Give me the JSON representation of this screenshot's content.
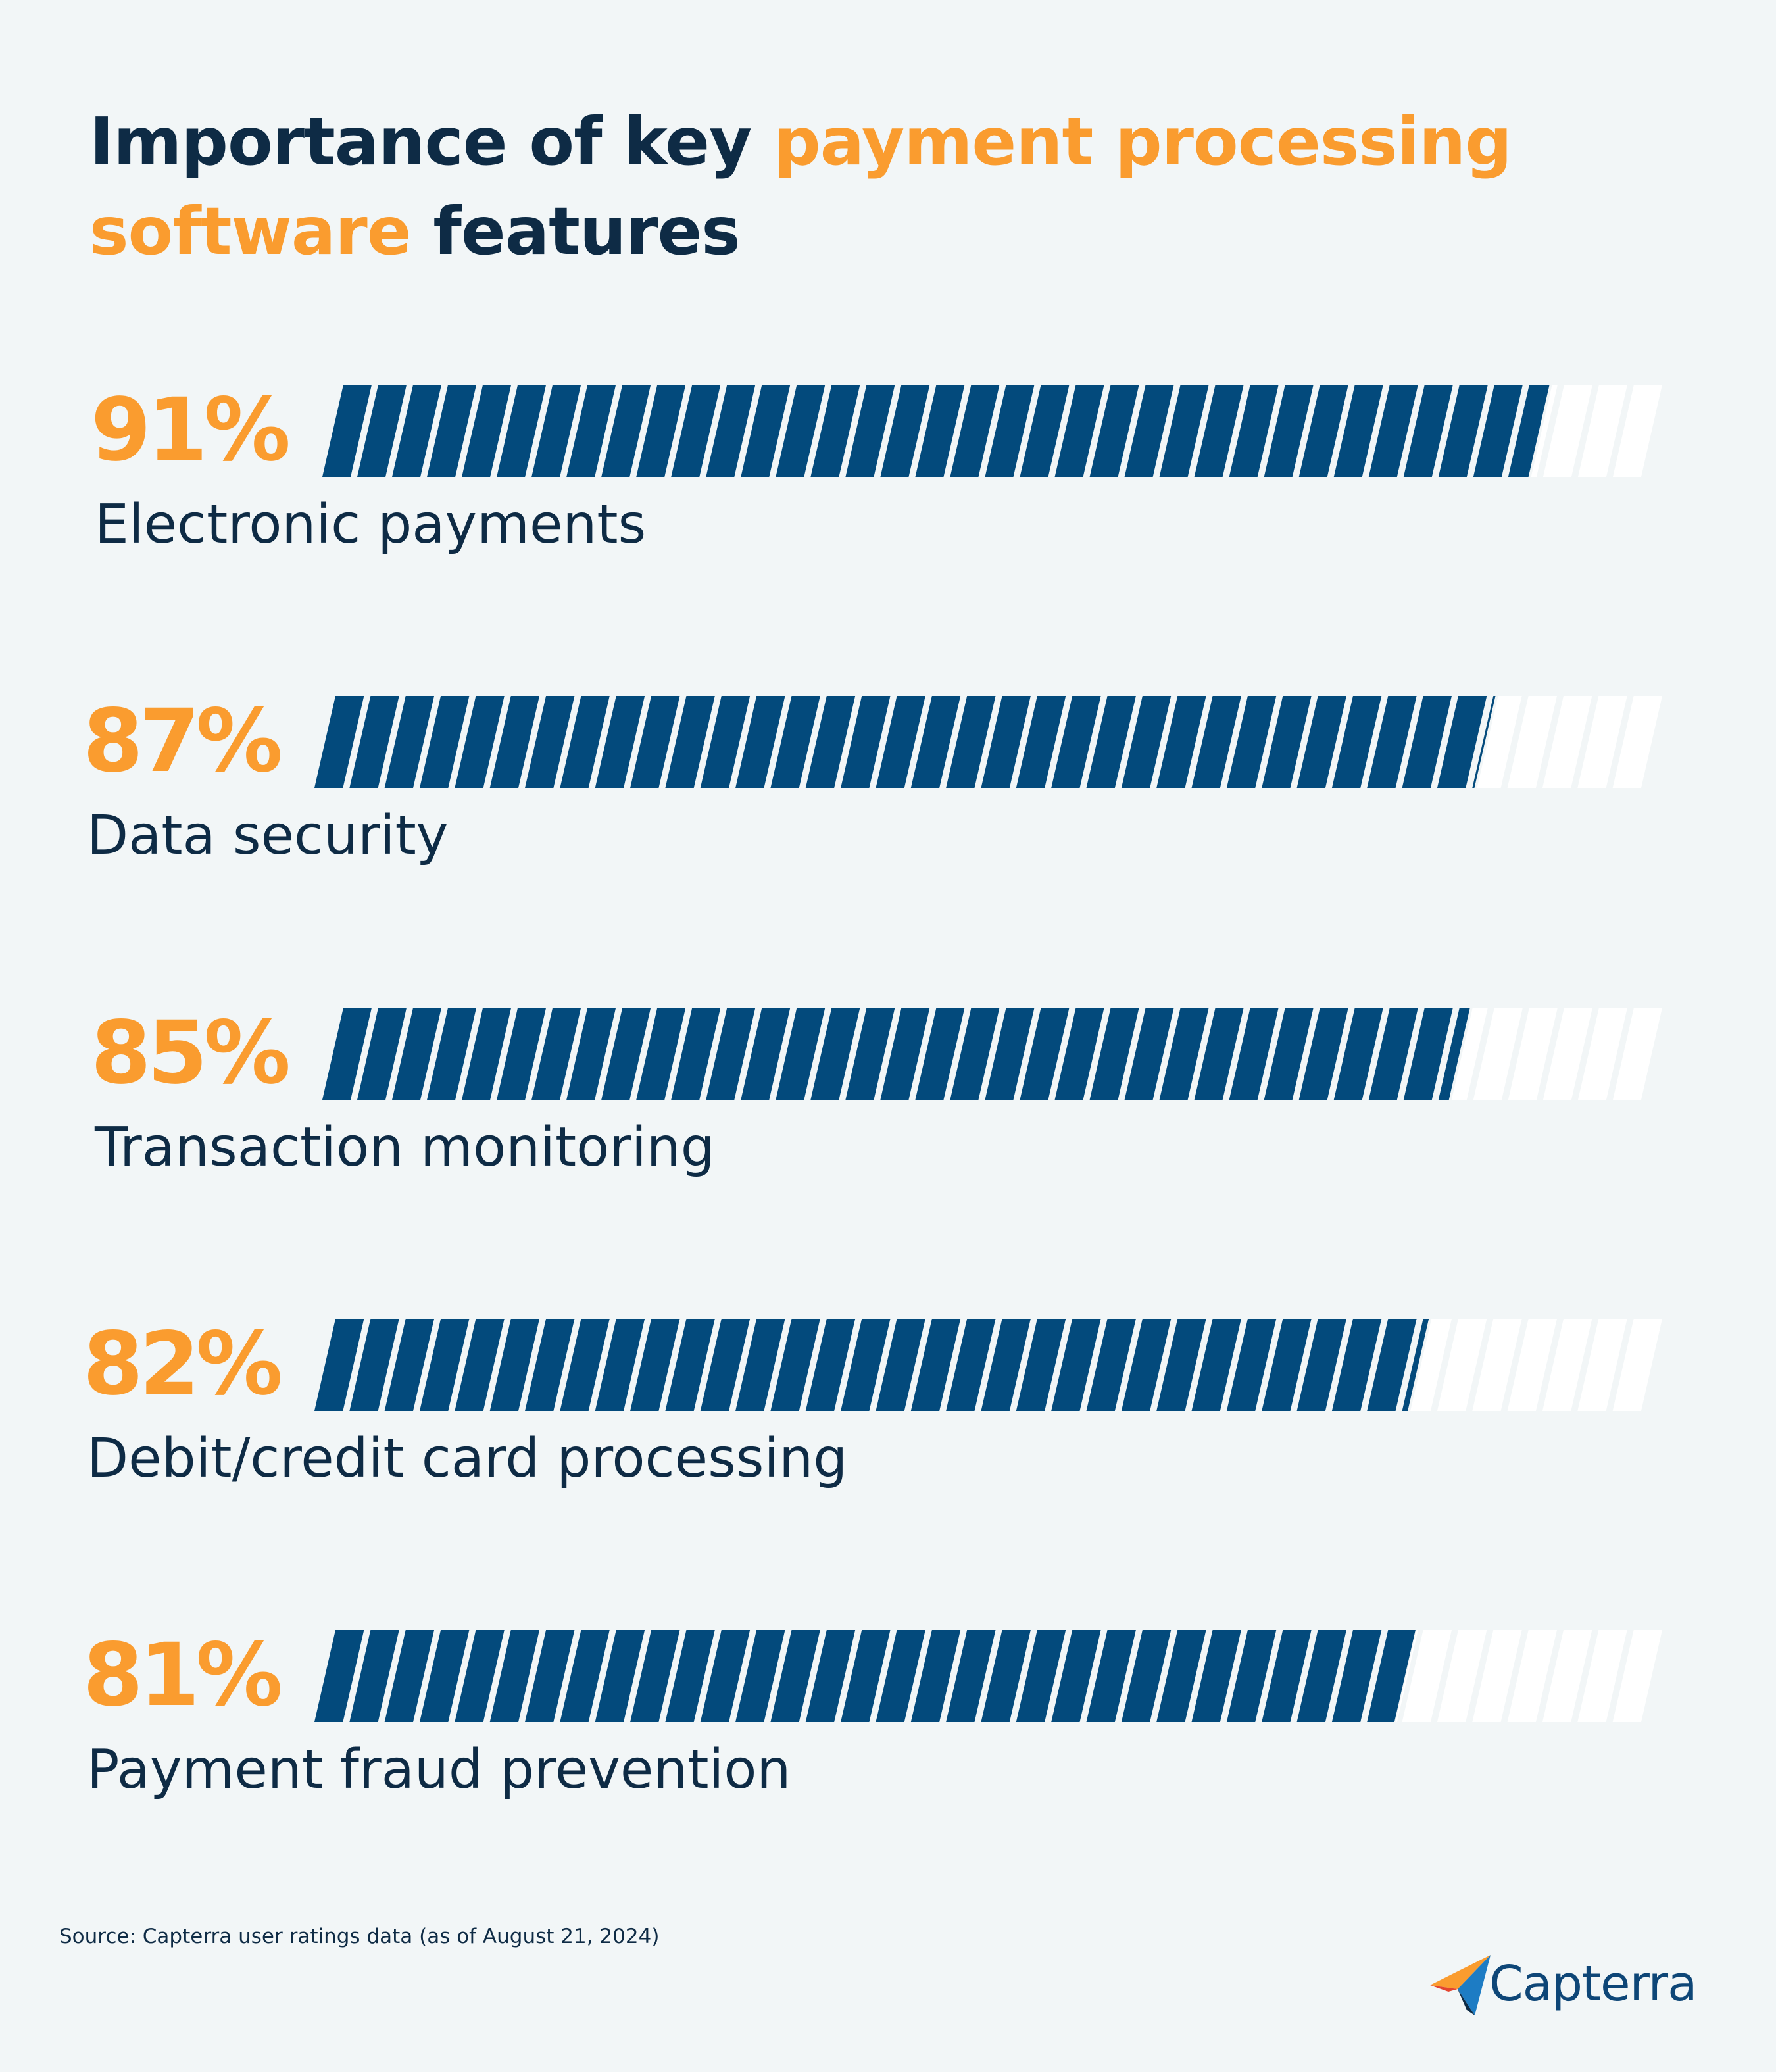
{
  "title": {
    "part1": "Importance of key ",
    "highlight": "payment processing software",
    "part2": " features"
  },
  "colors": {
    "fill": "#034a7c",
    "empty": "#ffffff",
    "accent": "#fa9c2f",
    "text": "#0e2b45",
    "background": "#f2f6f7"
  },
  "chart_data": {
    "type": "bar",
    "orientation": "horizontal",
    "title": "Importance of key payment processing software features",
    "categories": [
      "Electronic payments",
      "Data security",
      "Transaction monitoring",
      "Debit/credit card processing",
      "Payment fraud prevention"
    ],
    "values": [
      91,
      87,
      85,
      82,
      81
    ],
    "value_labels": [
      "91%",
      "87%",
      "85%",
      "82%",
      "81%"
    ],
    "unit": "%",
    "xlim": [
      0,
      100
    ],
    "grid": false,
    "legend": "none"
  },
  "source": "Source: Capterra user ratings data (as of August 21, 2024)",
  "logo": {
    "text": "Capterra",
    "icon": "capterra-arrow-icon"
  }
}
